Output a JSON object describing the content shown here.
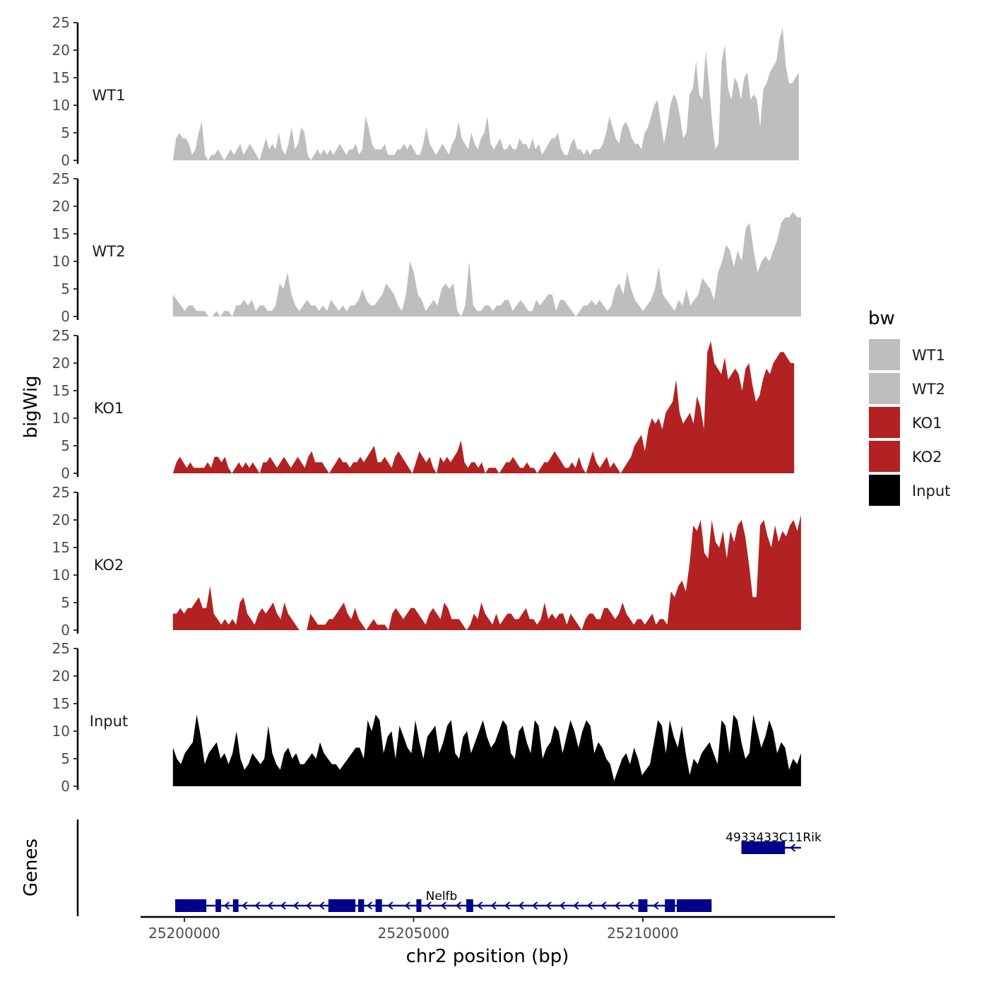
{
  "chart_data": {
    "type": "area",
    "ylabel": "bigWig",
    "xlabel": "chr2 position (bp)",
    "ylim": [
      0,
      25
    ],
    "yticks": [
      0,
      5,
      10,
      15,
      20,
      25
    ],
    "xlim": [
      25198900,
      25213800
    ],
    "xticks": [
      25200000,
      25205000,
      25210000
    ],
    "x_tick_labels": [
      "25200000",
      "25205000",
      "25210000"
    ],
    "genes_label": "Genes",
    "legend": {
      "title": "bw",
      "entries": [
        {
          "label": "WT1",
          "color": "#bebebe"
        },
        {
          "label": "WT2",
          "color": "#bebebe"
        },
        {
          "label": "KO1",
          "color": "#b22222"
        },
        {
          "label": "KO2",
          "color": "#b22222"
        },
        {
          "label": "Input",
          "color": "#000000"
        }
      ]
    },
    "series": [
      {
        "name": "WT1",
        "color": "#bebebe",
        "x_start": 25199750,
        "x_end": 25213400,
        "values": [
          0,
          4,
          5,
          4,
          4,
          3,
          1,
          2,
          5,
          7,
          1,
          0,
          1,
          1,
          2,
          1,
          0,
          1,
          2,
          1,
          2,
          3,
          1,
          2,
          3,
          2,
          1,
          0,
          2,
          4,
          2,
          3,
          2,
          5,
          2,
          1,
          3,
          6,
          2,
          3,
          6,
          5,
          1,
          0,
          1,
          2,
          1,
          2,
          1,
          2,
          1,
          2,
          3,
          2,
          1,
          2,
          2,
          3,
          1,
          2,
          8,
          6,
          3,
          2,
          2,
          2,
          3,
          1,
          1,
          1,
          2,
          2,
          3,
          2,
          3,
          2,
          1,
          1,
          3,
          6,
          3,
          2,
          1,
          2,
          3,
          2,
          1,
          3,
          4,
          7,
          4,
          3,
          2,
          5,
          3,
          2,
          4,
          5,
          8,
          3,
          2,
          3,
          4,
          2,
          2,
          3,
          2,
          2,
          4,
          3,
          3,
          2,
          4,
          2,
          3,
          1,
          2,
          3,
          4,
          4,
          5,
          2,
          1,
          1,
          3,
          4,
          2,
          2,
          1,
          2,
          1,
          2,
          2,
          2,
          3,
          5,
          8,
          6,
          4,
          3,
          6,
          7,
          6,
          4,
          3,
          3,
          2,
          5,
          6,
          8,
          10,
          11,
          7,
          3,
          6,
          10,
          12,
          11,
          8,
          4,
          5,
          12,
          13,
          18,
          12,
          11,
          20,
          14,
          7,
          2,
          3,
          18,
          21,
          13,
          11,
          15,
          14,
          11,
          15,
          16,
          11,
          12,
          11,
          6,
          13,
          14,
          16,
          17,
          18,
          22,
          24,
          17,
          14,
          14,
          15,
          16
        ]
      },
      {
        "name": "WT2",
        "color": "#bebebe",
        "x_start": 25199750,
        "x_end": 25213450,
        "values": [
          4,
          3,
          2,
          1,
          2,
          2,
          1,
          1,
          1,
          0,
          0,
          1,
          0,
          1,
          1,
          0,
          2,
          2,
          3,
          2,
          3,
          1,
          2,
          2,
          1,
          1,
          2,
          6,
          5,
          8,
          4,
          2,
          1,
          2,
          3,
          2,
          2,
          1,
          2,
          1,
          3,
          2,
          1,
          2,
          1,
          2,
          2,
          3,
          5,
          3,
          2,
          2,
          3,
          4,
          6,
          5,
          4,
          2,
          1,
          4,
          10,
          8,
          4,
          3,
          1,
          2,
          3,
          2,
          5,
          6,
          5,
          6,
          1,
          0,
          2,
          10,
          2,
          1,
          1,
          2,
          2,
          1,
          2,
          2,
          3,
          3,
          1,
          2,
          3,
          2,
          1,
          1,
          3,
          2,
          3,
          4,
          4,
          1,
          3,
          3,
          2,
          1,
          0,
          1,
          2,
          2,
          3,
          2,
          3,
          2,
          1,
          2,
          5,
          6,
          4,
          8,
          5,
          3,
          2,
          1,
          2,
          3,
          5,
          9,
          4,
          3,
          2,
          1,
          3,
          2,
          5,
          2,
          3,
          4,
          7,
          6,
          5,
          3,
          8,
          10,
          13,
          12,
          9,
          12,
          10,
          16,
          17,
          12,
          8,
          10,
          11,
          10,
          12,
          14,
          17,
          18,
          18,
          19,
          18,
          18
        ]
      },
      {
        "name": "KO1",
        "color": "#b22222",
        "x_start": 25199750,
        "x_end": 25213300,
        "values": [
          0,
          2,
          3,
          2,
          1,
          2,
          1,
          1,
          1,
          1,
          2,
          1,
          3,
          3,
          2,
          3,
          1,
          0,
          1,
          2,
          1,
          2,
          1,
          2,
          1,
          0,
          2,
          2,
          3,
          2,
          1,
          2,
          3,
          2,
          1,
          2,
          3,
          2,
          1,
          3,
          4,
          2,
          2,
          2,
          1,
          0,
          1,
          2,
          3,
          2,
          2,
          1,
          2,
          2,
          3,
          2,
          3,
          4,
          5,
          2,
          2,
          3,
          2,
          1,
          3,
          4,
          3,
          2,
          1,
          0,
          2,
          4,
          3,
          2,
          3,
          1,
          0,
          3,
          2,
          3,
          2,
          3,
          4,
          6,
          2,
          1,
          2,
          2,
          1,
          2,
          0,
          1,
          1,
          1,
          0,
          1,
          2,
          2,
          3,
          2,
          1,
          1,
          2,
          1,
          1,
          0,
          1,
          2,
          2,
          3,
          4,
          3,
          2,
          1,
          1,
          2,
          1,
          3,
          1,
          0,
          2,
          4,
          2,
          1,
          2,
          3,
          1,
          2,
          1,
          0,
          1,
          2,
          3,
          5,
          6,
          7,
          4,
          8,
          10,
          9,
          10,
          8,
          11,
          12,
          13,
          17,
          11,
          9,
          10,
          11,
          9,
          14,
          12,
          8,
          22,
          24,
          20,
          19,
          18,
          21,
          17,
          18,
          19,
          18,
          15,
          19,
          20,
          16,
          13,
          14,
          17,
          19,
          18,
          20,
          21,
          22,
          22,
          21,
          20,
          20
        ]
      },
      {
        "name": "KO2",
        "color": "#b22222",
        "x_start": 25199750,
        "x_end": 25213450,
        "values": [
          3,
          3,
          4,
          3,
          4,
          4,
          5,
          6,
          4,
          4,
          8,
          3,
          2,
          1,
          2,
          1,
          2,
          1,
          5,
          6,
          3,
          2,
          1,
          3,
          4,
          3,
          4,
          5,
          3,
          2,
          5,
          3,
          2,
          1,
          0,
          0,
          0,
          3,
          2,
          1,
          1,
          1,
          2,
          2,
          3,
          4,
          5,
          3,
          2,
          4,
          2,
          1,
          0,
          1,
          2,
          1,
          1,
          1,
          0,
          3,
          4,
          3,
          2,
          3,
          4,
          4,
          3,
          2,
          1,
          3,
          4,
          3,
          2,
          5,
          4,
          2,
          2,
          2,
          1,
          0,
          1,
          3,
          2,
          5,
          3,
          2,
          1,
          3,
          1,
          2,
          3,
          3,
          2,
          2,
          3,
          4,
          2,
          2,
          1,
          2,
          5,
          2,
          3,
          2,
          3,
          3,
          1,
          3,
          2,
          1,
          0,
          2,
          3,
          3,
          2,
          2,
          4,
          4,
          3,
          2,
          3,
          5,
          3,
          2,
          1,
          2,
          2,
          1,
          2,
          3,
          1,
          2,
          2,
          1,
          7,
          6,
          8,
          9,
          7,
          12,
          19,
          18,
          20,
          14,
          13,
          20,
          16,
          15,
          18,
          13,
          18,
          16,
          19,
          20,
          17,
          12,
          6,
          6,
          19,
          20,
          17,
          15,
          19,
          16,
          18,
          17,
          19,
          20,
          18,
          21
        ]
      },
      {
        "name": "Input",
        "color": "#000000",
        "x_start": 25199750,
        "x_end": 25213450,
        "values": [
          7,
          5,
          4,
          6,
          7,
          8,
          13,
          9,
          4,
          6,
          7,
          8,
          5,
          6,
          4,
          6,
          10,
          5,
          3,
          4,
          6,
          5,
          4,
          5,
          11,
          6,
          4,
          3,
          6,
          7,
          5,
          6,
          4,
          4,
          5,
          6,
          5,
          8,
          6,
          5,
          4,
          4,
          3,
          4,
          5,
          6,
          7,
          7,
          5,
          12,
          10,
          13,
          12,
          6,
          9,
          10,
          5,
          11,
          9,
          7,
          6,
          12,
          8,
          5,
          9,
          10,
          11,
          6,
          8,
          11,
          12,
          6,
          5,
          9,
          10,
          6,
          8,
          10,
          12,
          9,
          7,
          8,
          10,
          12,
          11,
          6,
          5,
          10,
          11,
          8,
          6,
          12,
          11,
          5,
          7,
          8,
          11,
          10,
          6,
          9,
          12,
          10,
          7,
          10,
          12,
          11,
          6,
          8,
          7,
          5,
          4,
          1,
          3,
          5,
          6,
          4,
          7,
          5,
          2,
          3,
          4,
          8,
          12,
          11,
          6,
          12,
          9,
          7,
          11,
          6,
          2,
          5,
          4,
          6,
          7,
          8,
          6,
          4,
          12,
          11,
          6,
          13,
          12,
          8,
          5,
          6,
          13,
          10,
          7,
          9,
          12,
          10,
          6,
          8,
          7,
          3,
          5,
          4,
          6
        ]
      }
    ],
    "genes": [
      {
        "name": "Nelfb",
        "strand": "-",
        "start": 25199800,
        "end": 25211500,
        "exons": [
          [
            25199800,
            25200480
          ],
          [
            25200680,
            25200800
          ],
          [
            25201060,
            25201180
          ],
          [
            25203140,
            25203730
          ],
          [
            25203790,
            25203920
          ],
          [
            25204170,
            25204310
          ],
          [
            25205060,
            25205170
          ],
          [
            25206150,
            25206300
          ],
          [
            25209900,
            25210100
          ],
          [
            25210480,
            25210700
          ],
          [
            25210740,
            25211500
          ]
        ]
      },
      {
        "name": "4933433C11Rik",
        "strand": "-",
        "start": 25212150,
        "end": 25213450,
        "exons": [
          [
            25212150,
            25213100
          ]
        ]
      }
    ]
  }
}
